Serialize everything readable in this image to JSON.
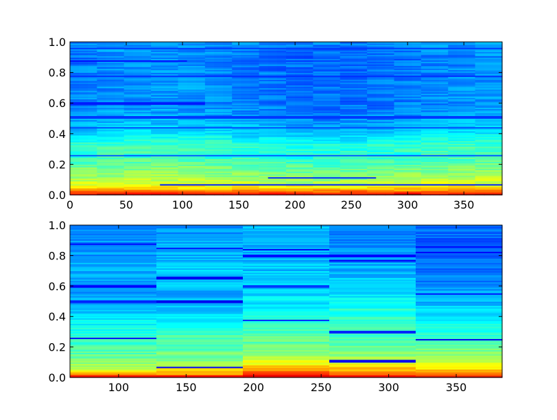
{
  "chart_data": [
    {
      "type": "heatmap",
      "colormap": "jet",
      "title": "",
      "xlabel": "",
      "ylabel": "",
      "xlim": [
        0,
        384
      ],
      "ylim": [
        0.0,
        1.0
      ],
      "grid": false,
      "x_ticks": [
        0,
        50,
        100,
        150,
        200,
        250,
        300,
        350
      ],
      "x_tick_labels": [
        "0",
        "50",
        "100",
        "150",
        "200",
        "250",
        "300",
        "350"
      ],
      "y_ticks": [
        0.0,
        0.2,
        0.4,
        0.6,
        0.8,
        1.0
      ],
      "y_tick_labels": [
        "0.0",
        "0.2",
        "0.4",
        "0.6",
        "0.8",
        "1.0"
      ],
      "y_profile": [
        [
          0.0,
          0.97
        ],
        [
          0.01,
          0.86
        ],
        [
          0.025,
          0.76
        ],
        [
          0.05,
          0.64
        ],
        [
          0.08,
          0.57
        ],
        [
          0.12,
          0.52
        ],
        [
          0.18,
          0.48
        ],
        [
          0.25,
          0.42
        ],
        [
          0.32,
          0.43
        ],
        [
          0.4,
          0.34
        ],
        [
          0.5,
          0.28
        ],
        [
          0.6,
          0.25
        ],
        [
          0.7,
          0.26
        ],
        [
          0.8,
          0.25
        ],
        [
          0.9,
          0.24
        ],
        [
          1.0,
          0.27
        ]
      ],
      "dark_bands": [
        {
          "y": 0.07,
          "x_range": [
            80,
            384
          ],
          "value": 0.16
        },
        {
          "y": 0.115,
          "x_range": [
            180,
            270
          ],
          "value": 0.17
        },
        {
          "y": 0.26,
          "x_range": [
            0,
            384
          ],
          "value": 0.22
        },
        {
          "y": 0.44,
          "x_range": [
            0,
            384
          ],
          "value": 0.2
        },
        {
          "y": 0.51,
          "x_range": [
            0,
            384
          ],
          "value": 0.18
        },
        {
          "y": 0.6,
          "x_range": [
            0,
            120
          ],
          "value": 0.15
        },
        {
          "y": 0.78,
          "x_range": [
            0,
            384
          ],
          "value": 0.17
        },
        {
          "y": 0.875,
          "x_range": [
            0,
            100
          ],
          "value": 0.14
        },
        {
          "y": 0.96,
          "x_range": [
            0,
            384
          ],
          "value": 0.18
        }
      ]
    },
    {
      "type": "heatmap",
      "colormap": "jet",
      "title": "",
      "xlabel": "",
      "ylabel": "",
      "xlim": [
        64,
        384
      ],
      "ylim": [
        0.0,
        1.0
      ],
      "grid": false,
      "x_ticks": [
        100,
        150,
        200,
        250,
        300,
        350
      ],
      "x_tick_labels": [
        "100",
        "150",
        "200",
        "250",
        "300",
        "350"
      ],
      "y_ticks": [
        0.0,
        0.2,
        0.4,
        0.6,
        0.8,
        1.0
      ],
      "y_tick_labels": [
        "0.0",
        "0.2",
        "0.4",
        "0.6",
        "0.8",
        "1.0"
      ],
      "segments": [
        {
          "x_range": [
            64,
            128
          ],
          "y_profile": [
            [
              0.0,
              0.96
            ],
            [
              0.02,
              0.72
            ],
            [
              0.05,
              0.6
            ],
            [
              0.1,
              0.5
            ],
            [
              0.2,
              0.44
            ],
            [
              0.3,
              0.41
            ],
            [
              0.42,
              0.33
            ],
            [
              0.55,
              0.28
            ],
            [
              0.7,
              0.3
            ],
            [
              0.85,
              0.27
            ],
            [
              1.0,
              0.25
            ]
          ],
          "dark_bands": [
            {
              "y": 0.26,
              "value": 0.14
            },
            {
              "y": 0.5,
              "value": 0.16
            },
            {
              "y": 0.6,
              "value": 0.13
            },
            {
              "y": 0.875,
              "value": 0.14
            }
          ]
        },
        {
          "x_range": [
            128,
            192
          ],
          "y_profile": [
            [
              0.0,
              0.96
            ],
            [
              0.02,
              0.74
            ],
            [
              0.06,
              0.64
            ],
            [
              0.1,
              0.52
            ],
            [
              0.2,
              0.45
            ],
            [
              0.3,
              0.42
            ],
            [
              0.42,
              0.33
            ],
            [
              0.55,
              0.3
            ],
            [
              0.7,
              0.33
            ],
            [
              0.85,
              0.29
            ],
            [
              1.0,
              0.27
            ]
          ],
          "dark_bands": [
            {
              "y": 0.07,
              "value": 0.12
            },
            {
              "y": 0.5,
              "value": 0.11
            },
            {
              "y": 0.655,
              "value": 0.11
            },
            {
              "y": 0.85,
              "value": 0.15
            }
          ]
        },
        {
          "x_range": [
            192,
            256
          ],
          "y_profile": [
            [
              0.0,
              0.96
            ],
            [
              0.03,
              0.78
            ],
            [
              0.08,
              0.66
            ],
            [
              0.12,
              0.55
            ],
            [
              0.2,
              0.48
            ],
            [
              0.3,
              0.45
            ],
            [
              0.42,
              0.38
            ],
            [
              0.55,
              0.34
            ],
            [
              0.7,
              0.32
            ],
            [
              0.85,
              0.3
            ],
            [
              1.0,
              0.32
            ]
          ],
          "dark_bands": [
            {
              "y": 0.38,
              "value": 0.16
            },
            {
              "y": 0.6,
              "value": 0.18
            },
            {
              "y": 0.8,
              "value": 0.14
            },
            {
              "y": 0.84,
              "value": 0.12
            }
          ]
        },
        {
          "x_range": [
            256,
            320
          ],
          "y_profile": [
            [
              0.0,
              0.96
            ],
            [
              0.03,
              0.74
            ],
            [
              0.08,
              0.64
            ],
            [
              0.12,
              0.54
            ],
            [
              0.2,
              0.48
            ],
            [
              0.3,
              0.44
            ],
            [
              0.4,
              0.42
            ],
            [
              0.55,
              0.36
            ],
            [
              0.7,
              0.3
            ],
            [
              0.85,
              0.26
            ],
            [
              1.0,
              0.25
            ]
          ],
          "dark_bands": [
            {
              "y": 0.11,
              "value": 0.11
            },
            {
              "y": 0.3,
              "value": 0.16
            },
            {
              "y": 0.77,
              "value": 0.12
            },
            {
              "y": 0.8,
              "value": 0.13
            }
          ]
        },
        {
          "x_range": [
            320,
            384
          ],
          "y_profile": [
            [
              0.0,
              0.95
            ],
            [
              0.02,
              0.76
            ],
            [
              0.05,
              0.68
            ],
            [
              0.1,
              0.56
            ],
            [
              0.2,
              0.48
            ],
            [
              0.3,
              0.42
            ],
            [
              0.4,
              0.35
            ],
            [
              0.55,
              0.28
            ],
            [
              0.7,
              0.24
            ],
            [
              0.85,
              0.22
            ],
            [
              1.0,
              0.24
            ]
          ],
          "dark_bands": [
            {
              "y": 0.25,
              "value": 0.11
            },
            {
              "y": 0.55,
              "value": 0.14
            },
            {
              "y": 0.82,
              "value": 0.12
            },
            {
              "y": 0.86,
              "value": 0.13
            }
          ]
        }
      ]
    }
  ]
}
